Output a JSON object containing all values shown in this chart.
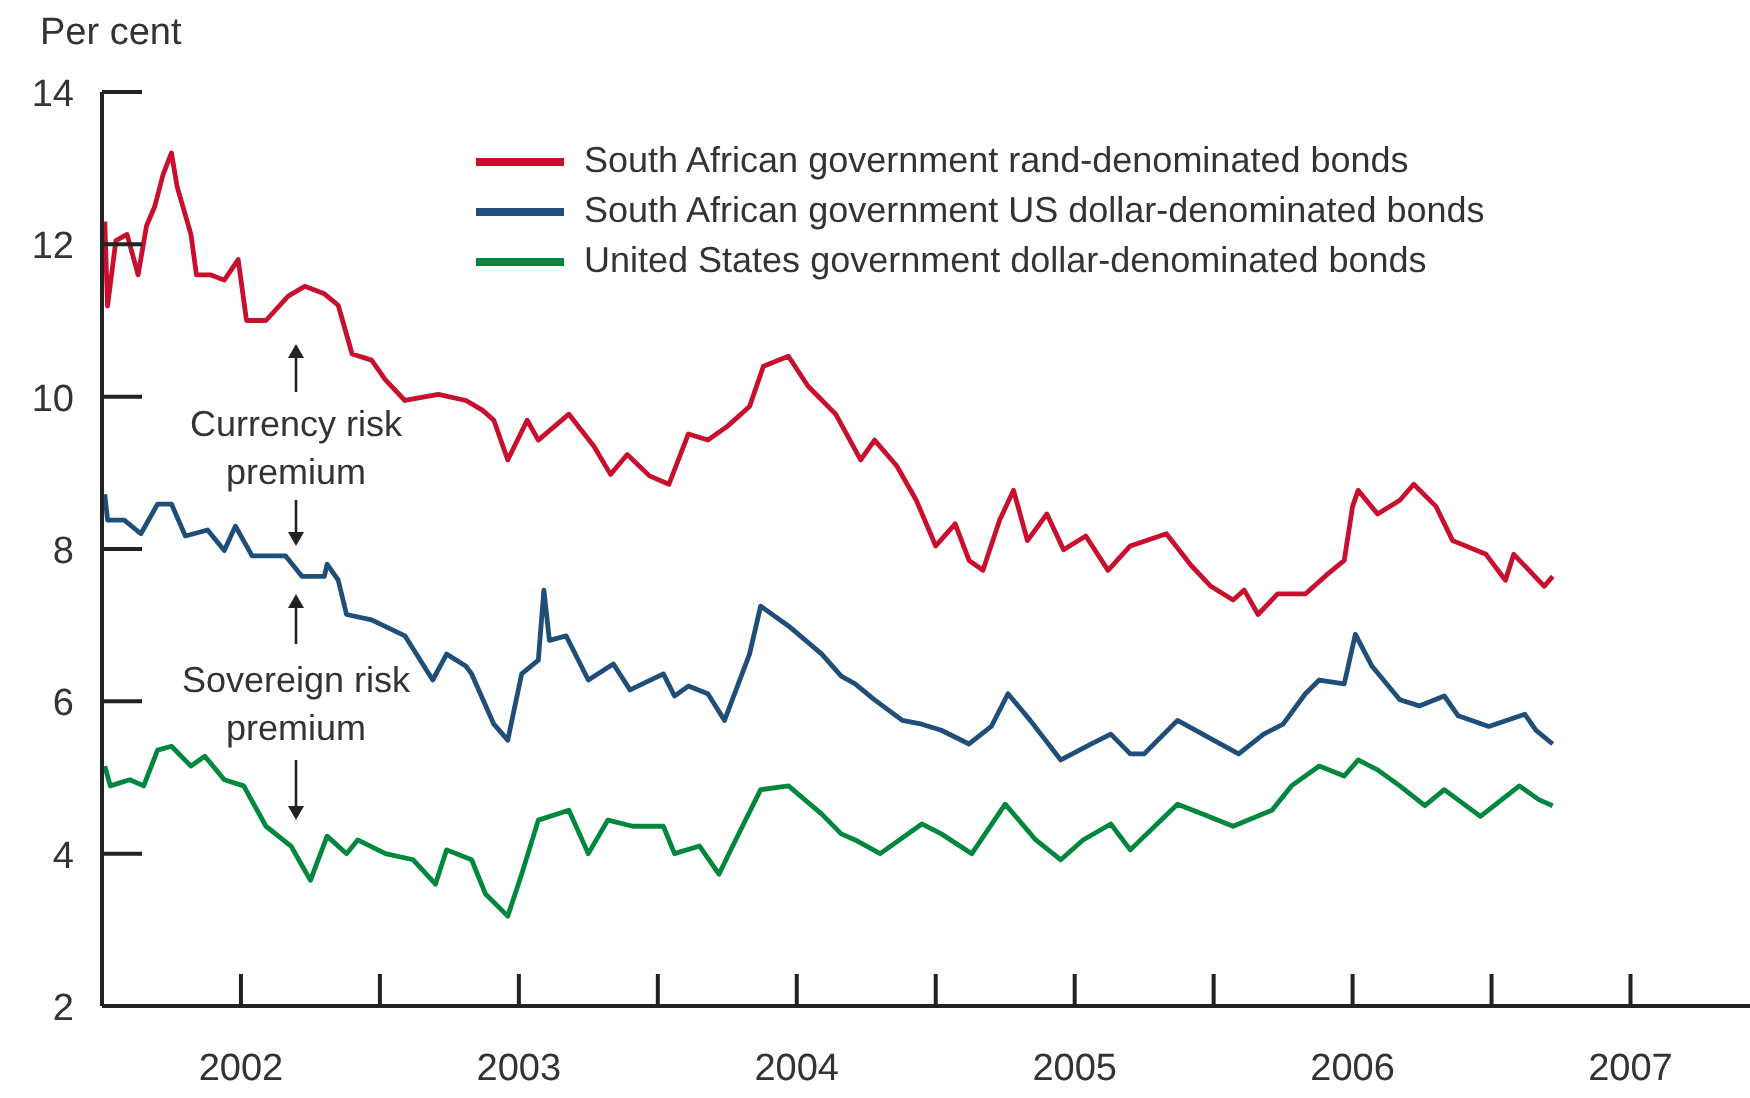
{
  "chart_data": {
    "type": "line",
    "ylabel": "Per cent",
    "legend": "top",
    "xlim": [
      2002,
      2007.93
    ],
    "xticks": [
      {
        "value": 2002.5,
        "label": "2002"
      },
      {
        "value": 2003,
        "label": null
      },
      {
        "value": 2003.5,
        "label": "2003"
      },
      {
        "value": 2004,
        "label": null
      },
      {
        "value": 2004.5,
        "label": "2004"
      },
      {
        "value": 2005,
        "label": null
      },
      {
        "value": 2005.5,
        "label": "2005"
      },
      {
        "value": 2006,
        "label": null
      },
      {
        "value": 2006.5,
        "label": "2006"
      },
      {
        "value": 2007,
        "label": null
      },
      {
        "value": 2007.5,
        "label": "2007"
      }
    ],
    "ylim": [
      2,
      14
    ],
    "yticks": [
      2,
      4,
      6,
      8,
      10,
      12,
      14
    ],
    "annotations": [
      "Currency risk premium",
      "Sovereign risk premium"
    ],
    "series": [
      {
        "name": "South African government rand-denominated bonds",
        "color": "#c8102e",
        "x": [
          2002.01,
          2002.02,
          2002.05,
          2002.09,
          2002.13,
          2002.16,
          2002.19,
          2002.22,
          2002.25,
          2002.27,
          2002.32,
          2002.34,
          2002.39,
          2002.44,
          2002.49,
          2002.52,
          2002.59,
          2002.67,
          2002.73,
          2002.8,
          2002.85,
          2002.9,
          2002.97,
          2003.02,
          2003.09,
          2003.21,
          2003.31,
          2003.37,
          2003.41,
          2003.46,
          2003.53,
          2003.57,
          2003.68,
          2003.77,
          2003.83,
          2003.89,
          2003.97,
          2004.04,
          2004.11,
          2004.18,
          2004.25,
          2004.33,
          2004.38,
          2004.47,
          2004.54,
          2004.64,
          2004.73,
          2004.78,
          2004.86,
          2004.93,
          2005.0,
          2005.07,
          2005.12,
          2005.17,
          2005.23,
          2005.28,
          2005.33,
          2005.4,
          2005.46,
          2005.54,
          2005.62,
          2005.7,
          2005.83,
          2005.92,
          2005.99,
          2006.07,
          2006.11,
          2006.16,
          2006.23,
          2006.33,
          2006.41,
          2006.47,
          2006.5,
          2006.52,
          2006.59,
          2006.67,
          2006.72,
          2006.8,
          2006.86,
          2006.98,
          2007.05,
          2007.08,
          2007.19,
          2007.22
        ],
        "values": [
          12.3,
          11.19,
          12.05,
          12.13,
          11.6,
          12.24,
          12.5,
          12.92,
          13.2,
          12.76,
          12.13,
          11.6,
          11.6,
          11.53,
          11.8,
          11.0,
          11.0,
          11.32,
          11.45,
          11.35,
          11.2,
          10.56,
          10.48,
          10.22,
          9.95,
          10.03,
          9.95,
          9.82,
          9.69,
          9.17,
          9.69,
          9.43,
          9.77,
          9.35,
          8.98,
          9.24,
          8.96,
          8.85,
          9.51,
          9.43,
          9.61,
          9.87,
          10.4,
          10.53,
          10.14,
          9.77,
          9.17,
          9.43,
          9.09,
          8.64,
          8.04,
          8.33,
          7.85,
          7.72,
          8.38,
          8.77,
          8.11,
          8.46,
          7.99,
          8.17,
          7.72,
          8.04,
          8.2,
          7.78,
          7.51,
          7.33,
          7.46,
          7.14,
          7.41,
          7.41,
          7.67,
          7.85,
          8.56,
          8.77,
          8.46,
          8.64,
          8.85,
          8.56,
          8.11,
          7.93,
          7.59,
          7.93,
          7.51,
          7.64
        ]
      },
      {
        "name": "South African government US dollar-denominated bonds",
        "color": "#1f4e79",
        "x": [
          2002.01,
          2002.02,
          2002.08,
          2002.14,
          2002.2,
          2002.25,
          2002.3,
          2002.38,
          2002.44,
          2002.48,
          2002.54,
          2002.66,
          2002.72,
          2002.8,
          2002.81,
          2002.85,
          2002.88,
          2002.97,
          2003.09,
          2003.19,
          2003.24,
          2003.31,
          2003.33,
          2003.41,
          2003.46,
          2003.51,
          2003.57,
          2003.59,
          2003.61,
          2003.67,
          2003.75,
          2003.84,
          2003.9,
          2004.02,
          2004.06,
          2004.11,
          2004.18,
          2004.24,
          2004.33,
          2004.37,
          2004.47,
          2004.59,
          2004.66,
          2004.71,
          2004.78,
          2004.88,
          2004.95,
          2005.02,
          2005.12,
          2005.2,
          2005.26,
          2005.34,
          2005.45,
          2005.56,
          2005.63,
          2005.7,
          2005.75,
          2005.87,
          2005.96,
          2006.09,
          2006.18,
          2006.25,
          2006.33,
          2006.38,
          2006.47,
          2006.51,
          2006.57,
          2006.67,
          2006.74,
          2006.83,
          2006.88,
          2006.99,
          2007.12,
          2007.16,
          2007.22
        ],
        "values": [
          8.72,
          8.38,
          8.38,
          8.2,
          8.59,
          8.59,
          8.17,
          8.25,
          7.98,
          8.3,
          7.91,
          7.91,
          7.64,
          7.64,
          7.8,
          7.59,
          7.14,
          7.07,
          6.86,
          6.28,
          6.62,
          6.46,
          6.36,
          5.7,
          5.49,
          6.36,
          6.54,
          7.46,
          6.8,
          6.86,
          6.28,
          6.49,
          6.15,
          6.36,
          6.07,
          6.2,
          6.1,
          5.75,
          6.62,
          7.25,
          6.99,
          6.62,
          6.33,
          6.23,
          6.02,
          5.75,
          5.7,
          5.62,
          5.44,
          5.67,
          6.1,
          5.75,
          5.23,
          5.44,
          5.57,
          5.31,
          5.31,
          5.75,
          5.57,
          5.31,
          5.57,
          5.7,
          6.1,
          6.28,
          6.23,
          6.88,
          6.46,
          6.02,
          5.94,
          6.07,
          5.81,
          5.67,
          5.83,
          5.62,
          5.44
        ]
      },
      {
        "name": "United States government dollar-denominated bonds",
        "color": "#00873e",
        "x": [
          2002.01,
          2002.03,
          2002.1,
          2002.15,
          2002.2,
          2002.25,
          2002.32,
          2002.37,
          2002.44,
          2002.51,
          2002.59,
          2002.68,
          2002.75,
          2002.81,
          2002.88,
          2002.92,
          2003.02,
          2003.12,
          2003.2,
          2003.24,
          2003.33,
          2003.38,
          2003.46,
          2003.51,
          2003.57,
          2003.68,
          2003.75,
          2003.82,
          2003.91,
          2004.02,
          2004.06,
          2004.15,
          2004.22,
          2004.28,
          2004.37,
          2004.47,
          2004.59,
          2004.66,
          2004.71,
          2004.8,
          2004.95,
          2005.02,
          2005.13,
          2005.25,
          2005.36,
          2005.45,
          2005.53,
          2005.63,
          2005.7,
          2005.87,
          2005.96,
          2006.07,
          2006.21,
          2006.28,
          2006.38,
          2006.47,
          2006.52,
          2006.59,
          2006.67,
          2006.76,
          2006.83,
          2006.96,
          2007.1,
          2007.17,
          2007.22
        ],
        "values": [
          5.15,
          4.89,
          4.97,
          4.89,
          5.36,
          5.41,
          5.15,
          5.28,
          4.97,
          4.89,
          4.36,
          4.1,
          3.65,
          4.23,
          4.0,
          4.18,
          4.0,
          3.92,
          3.6,
          4.05,
          3.92,
          3.47,
          3.18,
          3.73,
          4.44,
          4.57,
          4.0,
          4.44,
          4.36,
          4.36,
          4.0,
          4.1,
          3.73,
          4.18,
          4.84,
          4.89,
          4.52,
          4.26,
          4.18,
          4.0,
          4.39,
          4.26,
          4.0,
          4.65,
          4.18,
          3.92,
          4.18,
          4.39,
          4.05,
          4.65,
          4.52,
          4.36,
          4.57,
          4.89,
          5.15,
          5.02,
          5.23,
          5.1,
          4.89,
          4.63,
          4.84,
          4.49,
          4.89,
          4.71,
          4.63
        ]
      }
    ]
  }
}
